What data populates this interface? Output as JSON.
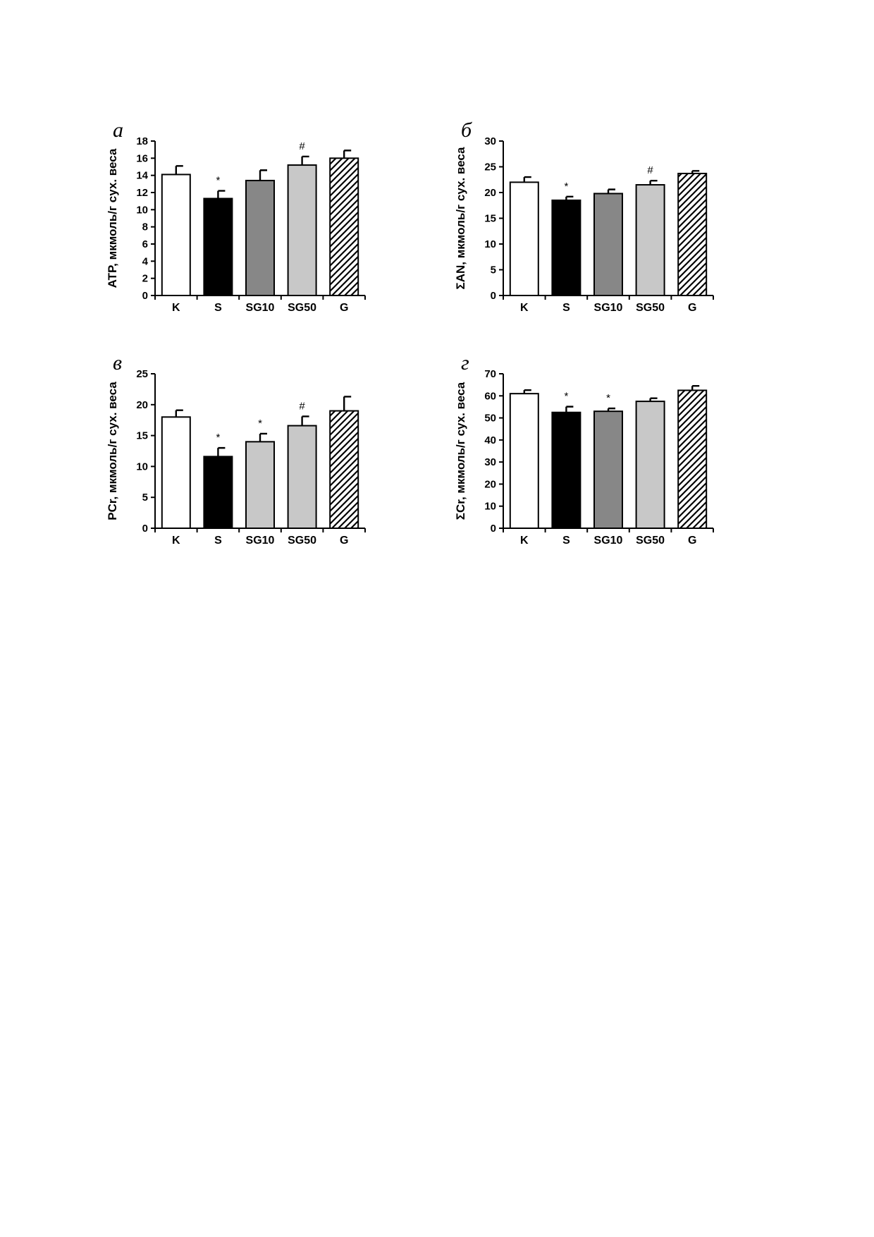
{
  "fill_colors": {
    "white": "#ffffff",
    "black": "#000000",
    "dark_gray": "#878787",
    "light_gray": "#c8c8c8",
    "hatch": "hatch"
  },
  "chart_data": [
    {
      "id": "a",
      "panel_letter": "а",
      "type": "bar",
      "categories": [
        "K",
        "S",
        "SG10",
        "SG50",
        "G"
      ],
      "values": [
        14.1,
        11.3,
        13.4,
        15.2,
        16.0
      ],
      "errors": [
        1.0,
        0.9,
        1.2,
        1.0,
        0.9
      ],
      "annotations": [
        "",
        "*",
        "",
        "#",
        ""
      ],
      "fills": [
        "white",
        "black",
        "dark_gray",
        "light_gray",
        "hatch"
      ],
      "ylabel": "ATP, мкмоль/г сух. веса",
      "ylim": [
        0,
        18
      ],
      "yticks": [
        0,
        2,
        4,
        6,
        8,
        10,
        12,
        14,
        16,
        18
      ],
      "grid": false,
      "legend": "none"
    },
    {
      "id": "b",
      "panel_letter": "б",
      "type": "bar",
      "categories": [
        "K",
        "S",
        "SG10",
        "SG50",
        "G"
      ],
      "values": [
        22.0,
        18.5,
        19.8,
        21.5,
        23.7
      ],
      "errors": [
        1.0,
        0.7,
        0.8,
        0.8,
        0.5
      ],
      "annotations": [
        "",
        "*",
        "",
        "#",
        ""
      ],
      "fills": [
        "white",
        "black",
        "dark_gray",
        "light_gray",
        "hatch"
      ],
      "ylabel": "ΣAN, мкмоль/г сух. веса",
      "ylim": [
        0,
        30
      ],
      "yticks": [
        0,
        5,
        10,
        15,
        20,
        25,
        30
      ],
      "grid": false,
      "legend": "none"
    },
    {
      "id": "c",
      "panel_letter": "в",
      "type": "bar",
      "categories": [
        "K",
        "S",
        "SG10",
        "SG50",
        "G"
      ],
      "values": [
        18.0,
        11.6,
        14.0,
        16.6,
        19.0
      ],
      "errors": [
        1.1,
        1.4,
        1.3,
        1.5,
        2.3
      ],
      "annotations": [
        "",
        "*",
        "*",
        "#",
        ""
      ],
      "fills": [
        "white",
        "black",
        "light_gray",
        "light_gray",
        "hatch"
      ],
      "ylabel": "PCr, мкмоль/г сух. веса",
      "ylim": [
        0,
        25
      ],
      "yticks": [
        0,
        5,
        10,
        15,
        20,
        25
      ],
      "grid": false,
      "legend": "none"
    },
    {
      "id": "d",
      "panel_letter": "г",
      "type": "bar",
      "categories": [
        "K",
        "S",
        "SG10",
        "SG50",
        "G"
      ],
      "values": [
        61.0,
        52.5,
        53.0,
        57.5,
        62.5
      ],
      "errors": [
        1.6,
        2.6,
        1.3,
        1.4,
        2.0
      ],
      "annotations": [
        "",
        "*",
        "*",
        "",
        ""
      ],
      "fills": [
        "white",
        "black",
        "dark_gray",
        "light_gray",
        "hatch"
      ],
      "ylabel": "ΣCr, мкмоль/г сух. веса",
      "ylim": [
        0,
        70
      ],
      "yticks": [
        0,
        10,
        20,
        30,
        40,
        50,
        60,
        70
      ],
      "grid": false,
      "legend": "none"
    }
  ]
}
